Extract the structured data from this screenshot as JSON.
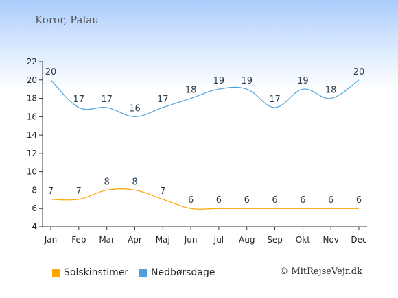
{
  "title": "Koror, Palau",
  "copyright": "© MitRejseVejr.dk",
  "colors": {
    "sun": "#ffa500",
    "rain": "#4aa3df"
  },
  "chart_data": {
    "type": "line",
    "title": "Koror, Palau",
    "categories": [
      "Jan",
      "Feb",
      "Mar",
      "Apr",
      "Maj",
      "Jun",
      "Jul",
      "Aug",
      "Sep",
      "Okt",
      "Nov",
      "Dec"
    ],
    "ylim": [
      4,
      22
    ],
    "yticks": [
      4,
      6,
      8,
      10,
      12,
      14,
      16,
      18,
      20,
      22
    ],
    "grid": false,
    "legend_position": "bottom",
    "series": [
      {
        "name": "Solskinstimer",
        "color": "#ffa500",
        "values": [
          7,
          7,
          8,
          8,
          7,
          6,
          6,
          6,
          6,
          6,
          6,
          6
        ]
      },
      {
        "name": "Nedbørsdage",
        "color": "#4aa3df",
        "values": [
          20,
          17,
          17,
          16,
          17,
          18,
          19,
          19,
          17,
          19,
          18,
          20
        ]
      }
    ]
  }
}
